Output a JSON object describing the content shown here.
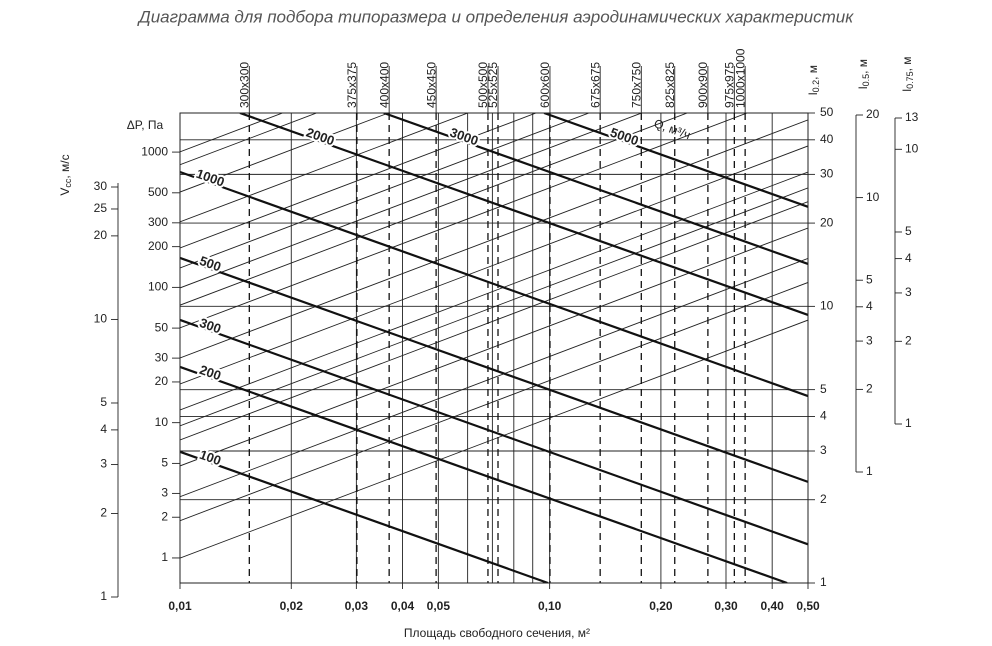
{
  "chart_data": {
    "type": "nomogram",
    "title": "Диаграмма для подбора типоразмера и определения аэродинамических характеристик",
    "x_label": "Площадь свободного сечения, м²",
    "log_scale": true,
    "xlim": [
      0.01,
      0.5
    ],
    "xticks": [
      {
        "value": 0.01,
        "label": "0,01"
      },
      {
        "value": 0.02,
        "label": "0,02"
      },
      {
        "value": 0.03,
        "label": "0,03"
      },
      {
        "value": 0.04,
        "label": "0,04"
      },
      {
        "value": 0.05,
        "label": "0,05"
      },
      {
        "value": 0.1,
        "label": "0,10"
      },
      {
        "value": 0.2,
        "label": "0,20"
      },
      {
        "value": 0.3,
        "label": "0,30"
      },
      {
        "value": 0.4,
        "label": "0,40"
      },
      {
        "value": 0.5,
        "label": "0,50"
      }
    ],
    "x_minor_grid": [
      0.06,
      0.07,
      0.08,
      0.09
    ],
    "y_label": {
      "main": "l",
      "sub": "0.2",
      "rest": ", м"
    },
    "ylim": [
      1,
      50
    ],
    "yticks": [
      1,
      2,
      3,
      4,
      5,
      10,
      20,
      30,
      40,
      50
    ],
    "dp_axis": {
      "label": "ΔP, Па",
      "lim": [
        0.653,
        1945
      ],
      "ticks": [
        1,
        2,
        3,
        5,
        10,
        20,
        30,
        50,
        100,
        200,
        300,
        500,
        1000
      ]
    },
    "v_axis": {
      "label": {
        "main": "V",
        "sub": "cc",
        "rest": ", м/с"
      },
      "lim": [
        1,
        30
      ],
      "ticks": [
        1,
        2,
        3,
        4,
        5,
        10,
        20,
        25,
        30
      ]
    },
    "l05_axis": {
      "label": {
        "main": "l",
        "sub": "0.5",
        "rest": ", м"
      },
      "lim": [
        1,
        20
      ],
      "ticks": [
        1,
        2,
        3,
        4,
        5,
        10,
        20
      ]
    },
    "l075_axis": {
      "label": {
        "main": "l",
        "sub": "0.75",
        "rest": ", м"
      },
      "lim": [
        1,
        13
      ],
      "ticks": [
        1,
        2,
        3,
        4,
        5,
        10,
        13
      ]
    },
    "sizes": [
      {
        "name": "300x300",
        "area": 0.0154
      },
      {
        "name": "375x375",
        "area": 0.0301
      },
      {
        "name": "400x400",
        "area": 0.0368
      },
      {
        "name": "450x450",
        "area": 0.0493
      },
      {
        "name": "500x500",
        "area": 0.0681
      },
      {
        "name": "525x525",
        "area": 0.0725
      },
      {
        "name": "600x600",
        "area": 0.1002
      },
      {
        "name": "675x675",
        "area": 0.137
      },
      {
        "name": "750x750",
        "area": 0.177
      },
      {
        "name": "825x825",
        "area": 0.218
      },
      {
        "name": "900x900",
        "area": 0.268
      },
      {
        "name": "975x975",
        "area": 0.316
      },
      {
        "name": "1000x1000",
        "area": 0.338
      }
    ],
    "q_label": "Q, м³/ч",
    "q_lines": [
      {
        "name": "100",
        "points": [
          [
            0.01,
            2.98
          ],
          [
            0.099,
            1
          ]
        ]
      },
      {
        "name": "200",
        "points": [
          [
            0.01,
            6.04
          ],
          [
            0.439,
            1
          ]
        ]
      },
      {
        "name": "300",
        "points": [
          [
            0.01,
            8.93
          ],
          [
            0.5,
            1.38
          ]
        ]
      },
      {
        "name": "500",
        "points": [
          [
            0.01,
            14.96
          ],
          [
            0.5,
            2.32
          ]
        ]
      },
      {
        "name": "1000",
        "points": [
          [
            0.01,
            30.6
          ],
          [
            0.5,
            4.74
          ]
        ]
      },
      {
        "name": "2000",
        "points": [
          [
            0.01453,
            50
          ],
          [
            0.5,
            9.31
          ]
        ]
      },
      {
        "name": "3000",
        "points": [
          [
            0.0356,
            50
          ],
          [
            0.5,
            14.23
          ]
        ]
      },
      {
        "name": "5000",
        "points": [
          [
            0.0966,
            50
          ],
          [
            0.5,
            22.9
          ]
        ]
      }
    ],
    "throw_lines": [
      [
        [
          0.01,
          1.23
        ],
        [
          0.5,
          8.92
        ]
      ],
      [
        [
          0.01,
          1.68
        ],
        [
          0.5,
          12.2
        ]
      ],
      [
        [
          0.01,
          2.05
        ],
        [
          0.5,
          14.9
        ]
      ],
      [
        [
          0.01,
          2.65
        ],
        [
          0.5,
          19.2
        ]
      ],
      [
        [
          0.01,
          3.29
        ],
        [
          0.5,
          23.9
        ]
      ],
      [
        [
          0.01,
          3.7
        ],
        [
          0.5,
          26.8
        ]
      ],
      [
        [
          0.01,
          4.22
        ],
        [
          0.5,
          30.6
        ]
      ],
      [
        [
          0.01,
          5.24
        ],
        [
          0.5,
          38
        ]
      ],
      [
        [
          0.01,
          6.51
        ],
        [
          0.5,
          47.2
        ]
      ],
      [
        [
          0.01,
          8.36
        ],
        [
          0.5,
          60.6
        ]
      ],
      [
        [
          0.01,
          10.1
        ],
        [
          0.5,
          73.2
        ]
      ],
      [
        [
          0.01,
          11.66
        ],
        [
          0.5,
          84.5
        ]
      ],
      [
        [
          0.01,
          13.77
        ],
        [
          0.5,
          99.8
        ]
      ],
      [
        [
          0.01,
          16.26
        ],
        [
          0.5,
          118
        ]
      ],
      [
        [
          0.01,
          20.2
        ],
        [
          0.5,
          146
        ]
      ],
      [
        [
          0.01,
          25.9
        ],
        [
          0.5,
          188
        ]
      ],
      [
        [
          0.01,
          32.5
        ],
        [
          0.5,
          236
        ]
      ],
      [
        [
          0.01,
          36.2
        ],
        [
          0.5,
          262
        ]
      ]
    ]
  }
}
